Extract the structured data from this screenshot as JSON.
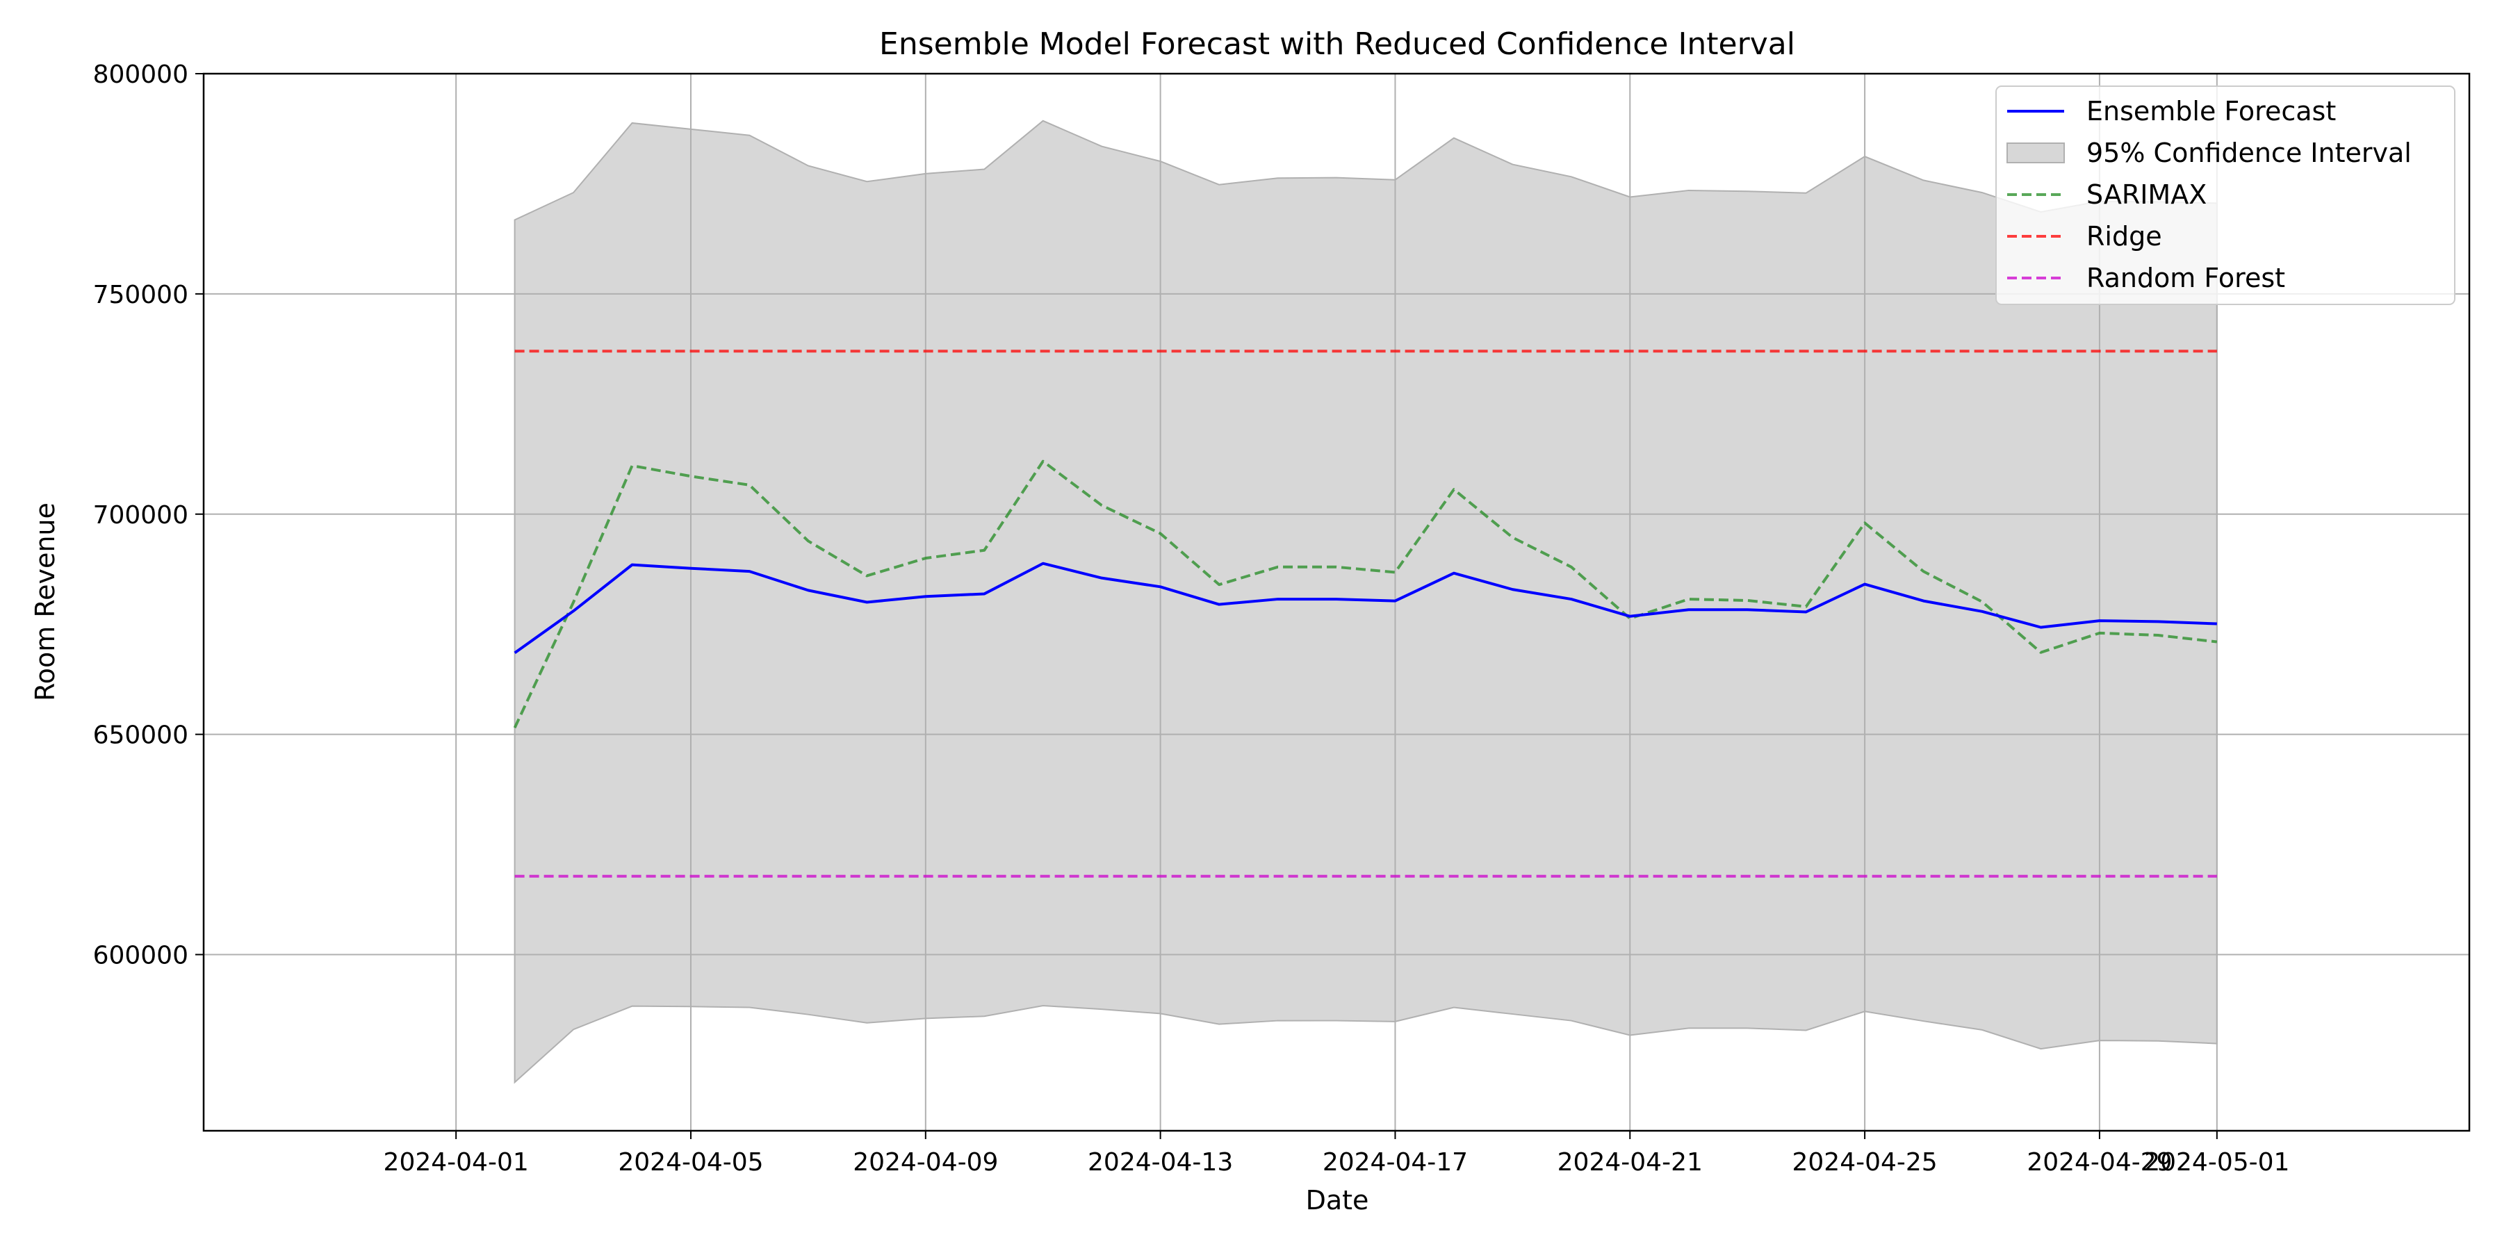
{
  "chart_data": {
    "type": "line",
    "title": "Ensemble Model Forecast with Reduced Confidence Interval",
    "xlabel": "Date",
    "ylabel": "Room Revenue",
    "x_type": "date",
    "xlim": [
      "2024-04-01",
      "2024-05-01"
    ],
    "ylim": [
      560000,
      800000
    ],
    "x_ticks": [
      "2024-04-01",
      "2024-04-05",
      "2024-04-09",
      "2024-04-13",
      "2024-04-17",
      "2024-04-21",
      "2024-04-25",
      "2024-04-29",
      "2024-05-01"
    ],
    "y_ticks": [
      600000,
      650000,
      700000,
      750000,
      800000
    ],
    "grid": true,
    "legend_position": "top-right",
    "x": [
      "2024-04-02",
      "2024-04-03",
      "2024-04-04",
      "2024-04-05",
      "2024-04-06",
      "2024-04-07",
      "2024-04-08",
      "2024-04-09",
      "2024-04-10",
      "2024-04-11",
      "2024-04-12",
      "2024-04-13",
      "2024-04-14",
      "2024-04-15",
      "2024-04-16",
      "2024-04-17",
      "2024-04-18",
      "2024-04-19",
      "2024-04-20",
      "2024-04-21",
      "2024-04-22",
      "2024-04-23",
      "2024-04-24",
      "2024-04-25",
      "2024-04-26",
      "2024-04-27",
      "2024-04-28",
      "2024-04-29",
      "2024-04-30",
      "2024-05-01"
    ],
    "series": [
      {
        "name": "Ensemble Forecast",
        "kind": "line",
        "style": "solid",
        "color": "#0000ff",
        "values": [
          668500,
          678000,
          688500,
          687700,
          687000,
          682700,
          680000,
          681300,
          681900,
          688800,
          685500,
          683500,
          679500,
          680700,
          680700,
          680300,
          686600,
          682900,
          680700,
          676800,
          678300,
          678300,
          677800,
          684100,
          680300,
          677900,
          674300,
          675800,
          675600,
          675100
        ]
      },
      {
        "name": "95% Confidence Interval",
        "kind": "band",
        "color": "#b0b0b0",
        "lower": [
          571000,
          583000,
          588300,
          588200,
          588000,
          586400,
          584500,
          585500,
          586000,
          588400,
          587600,
          586600,
          584200,
          585000,
          585000,
          584800,
          588000,
          586500,
          585000,
          581700,
          583300,
          583300,
          582800,
          587100,
          584900,
          582900,
          578600,
          580500,
          580400,
          579800
        ],
        "upper": [
          766800,
          773000,
          788800,
          787400,
          786000,
          779100,
          775500,
          777300,
          778300,
          789300,
          783500,
          780100,
          774800,
          776300,
          776400,
          775900,
          785400,
          779400,
          776600,
          772000,
          773500,
          773300,
          772900,
          781200,
          775800,
          773000,
          768600,
          771000,
          770900,
          770600
        ]
      },
      {
        "name": "SARIMAX",
        "kind": "line",
        "style": "dashed",
        "color": "#228b22",
        "values": [
          651500,
          680000,
          711000,
          708600,
          706600,
          693900,
          686000,
          690000,
          691800,
          712000,
          702000,
          695600,
          684000,
          688000,
          688000,
          686800,
          705600,
          694700,
          688000,
          676300,
          680700,
          680400,
          679000,
          698000,
          687000,
          680100,
          668600,
          673000,
          672500,
          671000
        ]
      },
      {
        "name": "Ridge",
        "kind": "line",
        "style": "dashed",
        "color": "#ff0000",
        "values": [
          737000,
          737000,
          737000,
          737000,
          737000,
          737000,
          737000,
          737000,
          737000,
          737000,
          737000,
          737000,
          737000,
          737000,
          737000,
          737000,
          737000,
          737000,
          737000,
          737000,
          737000,
          737000,
          737000,
          737000,
          737000,
          737000,
          737000,
          737000,
          737000,
          737000
        ]
      },
      {
        "name": "Random Forest",
        "kind": "line",
        "style": "dashed",
        "color": "#cc00cc",
        "values": [
          617800,
          617800,
          617800,
          617800,
          617800,
          617800,
          617800,
          617800,
          617800,
          617800,
          617800,
          617800,
          617800,
          617800,
          617800,
          617800,
          617800,
          617800,
          617800,
          617800,
          617800,
          617800,
          617800,
          617800,
          617800,
          617800,
          617800,
          617800,
          617800,
          617800
        ]
      }
    ]
  }
}
